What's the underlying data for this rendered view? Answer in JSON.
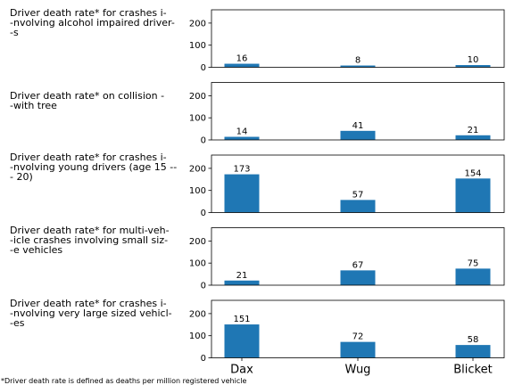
{
  "chart_data": {
    "type": "bar",
    "categories": [
      "Dax",
      "Wug",
      "Blicket"
    ],
    "ylim": [
      0,
      260
    ],
    "yticks": [
      0,
      100,
      200
    ],
    "bar_color": "#1f77b4",
    "grid": false,
    "panels": [
      {
        "label": "Driver death rate* for crashes i-\n-nvolving alcohol impaired driver-\n-s",
        "values": [
          16,
          8,
          10
        ]
      },
      {
        "label": "Driver death rate* on collision -\n-with tree",
        "values": [
          14,
          41,
          21
        ]
      },
      {
        "label": "Driver death rate* for crashes i-\n-nvolving young drivers (age 15 --\n- 20)",
        "values": [
          173,
          57,
          154
        ]
      },
      {
        "label": "Driver death rate* for multi-veh-\n-icle crashes involving small siz-\n-e vehicles",
        "values": [
          21,
          67,
          75
        ]
      },
      {
        "label": "Driver death rate* for crashes i-\n-nvolving very large sized vehicl-\n-es",
        "values": [
          151,
          72,
          58
        ]
      }
    ],
    "footnote": "*Driver death rate is defined as deaths per million registered vehicle"
  }
}
